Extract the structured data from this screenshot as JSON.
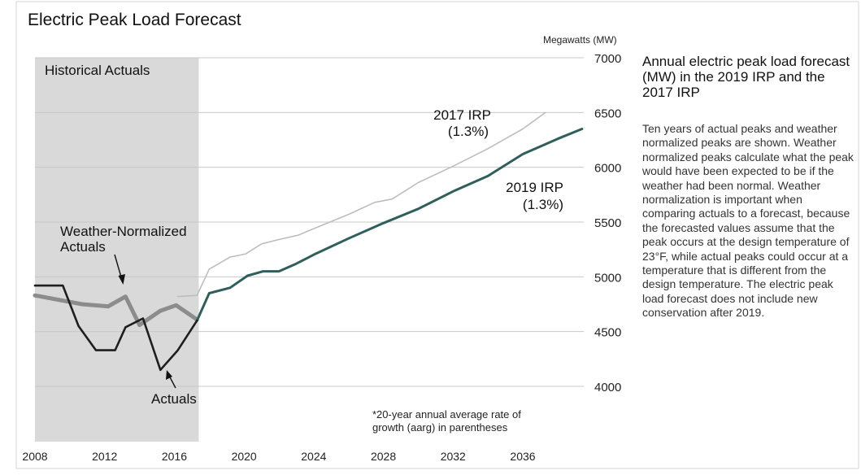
{
  "chart_data": {
    "type": "line",
    "title": "Electric Peak Load Forecast",
    "ylabel": "Megawatts (MW)",
    "xlim": [
      2008,
      2039.5
    ],
    "ylim": [
      4000,
      7000
    ],
    "x_ticks": [
      "2008",
      "2012",
      "2016",
      "2020",
      "2024",
      "2028",
      "2032",
      "2036"
    ],
    "y_ticks": [
      "4000",
      "4500",
      "5000",
      "5500",
      "6000",
      "6500",
      "7000"
    ],
    "shaded_region": {
      "label": "Historical Actuals",
      "x_start": 2008,
      "x_end": 2017.4,
      "color": "#d9d9d9"
    },
    "series": [
      {
        "name": "Actuals",
        "color": "#1e1e1e",
        "x": [
          2008,
          2009.6,
          2010.5,
          2011.5,
          2012.6,
          2013.2,
          2014.2,
          2015.2,
          2016.2,
          2017.3
        ],
        "y": [
          4920,
          4920,
          4550,
          4330,
          4330,
          4540,
          4620,
          4150,
          4330,
          4600
        ]
      },
      {
        "name": "Weather-Normalized Actuals",
        "color": "#8c8c8c",
        "x": [
          2008,
          2010.7,
          2012.2,
          2013.2,
          2014.0,
          2015.2,
          2016.1,
          2017.3
        ],
        "y": [
          4830,
          4750,
          4730,
          4820,
          4560,
          4690,
          4740,
          4610
        ]
      },
      {
        "name": "2017 IRP",
        "label_line2": "(1.3%)",
        "color": "#bdbdbd",
        "x": [
          2016.2,
          2017.3,
          2018.0,
          2019.2,
          2020.1,
          2021.0,
          2022.0,
          2023.1,
          2024.0,
          2026.0,
          2027.5,
          2028.5,
          2030.0,
          2032.0,
          2034.0,
          2036.0,
          2037.3
        ],
        "y": [
          4820,
          4830,
          5070,
          5180,
          5210,
          5300,
          5340,
          5380,
          5440,
          5570,
          5680,
          5710,
          5860,
          6010,
          6170,
          6350,
          6500
        ]
      },
      {
        "name": "2019 IRP",
        "label_line2": "(1.3%)",
        "color": "#2f5f5c",
        "x": [
          2017.3,
          2018.0,
          2019.2,
          2020.2,
          2021.1,
          2022.0,
          2023.0,
          2024.1,
          2026.0,
          2028.0,
          2030.0,
          2032.0,
          2034.0,
          2036.0,
          2038.0,
          2039.4
        ],
        "y": [
          4600,
          4850,
          4900,
          5010,
          5050,
          5050,
          5120,
          5210,
          5350,
          5490,
          5620,
          5780,
          5920,
          6120,
          6260,
          6350
        ]
      }
    ],
    "annotations": {
      "weather_normalized": [
        "Weather-Normalized",
        "Actuals"
      ],
      "actuals": "Actuals",
      "footnote": [
        "*20-year annual average rate of",
        "growth (aarg) in parentheses"
      ]
    },
    "grid": "horizontal",
    "legend": "none"
  },
  "sidebar": {
    "title": "Annual electric peak load forecast (MW) in the 2019 IRP and the 2017 IRP",
    "body": "Ten years of actual peaks and weather normalized peaks are shown. Weather normalized peaks calculate what the peak would have been expected to be if the weather had been normal. Weather normalization is important when comparing actuals to a forecast, because the forecasted values assume that the peak occurs at the design temperature of 23°F, while actual peaks could occur at a temperature that is different from the design temperature. The electric peak load forecast does not include new conservation after 2019."
  }
}
